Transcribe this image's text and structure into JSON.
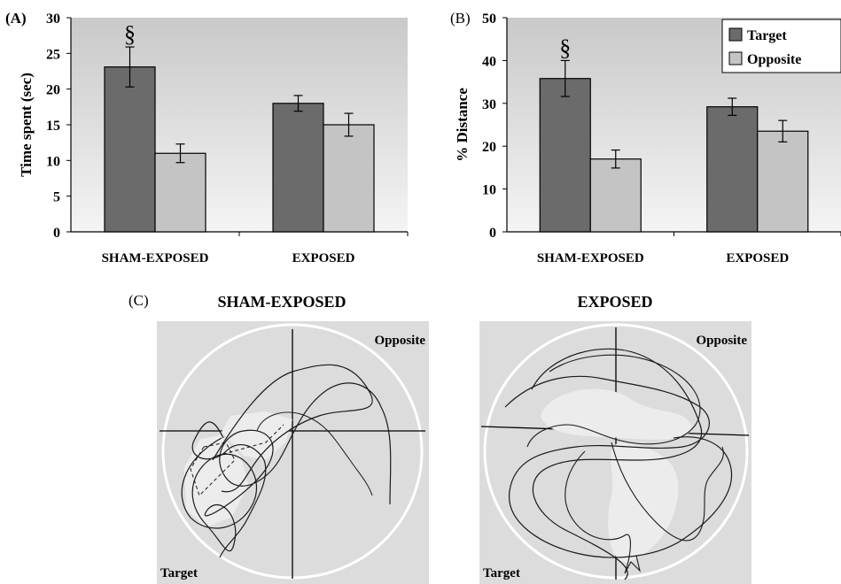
{
  "chart_data": [
    {
      "panel_label": "(A)",
      "type": "bar",
      "categories": [
        "SHAM-EXPOSED",
        "EXPOSED"
      ],
      "series": [
        {
          "name": "Target",
          "values": [
            23.1,
            18.0
          ],
          "errors": [
            2.8,
            1.1
          ],
          "color": "#6b6b6b"
        },
        {
          "name": "Opposite",
          "values": [
            11.0,
            15.0
          ],
          "errors": [
            1.3,
            1.6
          ],
          "color": "#c4c4c4"
        }
      ],
      "ylabel": "Time spent (sec)",
      "ylim": [
        0,
        30
      ],
      "yticks": [
        0,
        5,
        10,
        15,
        20,
        25,
        30
      ],
      "annotations": [
        {
          "text": "§",
          "category": "SHAM-EXPOSED",
          "series": "Target"
        }
      ]
    },
    {
      "panel_label": "(B)",
      "type": "bar",
      "categories": [
        "SHAM-EXPOSED",
        "EXPOSED"
      ],
      "series": [
        {
          "name": "Target",
          "values": [
            35.8,
            29.2
          ],
          "errors": [
            4.2,
            2.0
          ],
          "color": "#6b6b6b"
        },
        {
          "name": "Opposite",
          "values": [
            17.0,
            23.5
          ],
          "errors": [
            2.1,
            2.5
          ],
          "color": "#c4c4c4"
        }
      ],
      "ylabel": "% Distance",
      "ylim": [
        0,
        50
      ],
      "yticks": [
        0,
        10,
        20,
        30,
        40,
        50
      ],
      "legend": "top-right",
      "annotations": [
        {
          "text": "§",
          "category": "SHAM-EXPOSED",
          "series": "Target"
        }
      ]
    }
  ],
  "panel_c": {
    "label": "(C)",
    "tracks": [
      {
        "title": "SHAM-EXPOSED",
        "opposite_label": "Opposite",
        "target_label": "Target"
      },
      {
        "title": "EXPOSED",
        "opposite_label": "Opposite",
        "target_label": "Target"
      }
    ]
  },
  "colors": {
    "plot_bg_top": "#c9c9c9",
    "plot_bg_bottom": "#f4f4f4",
    "track_bg": "#dcdcdc"
  }
}
